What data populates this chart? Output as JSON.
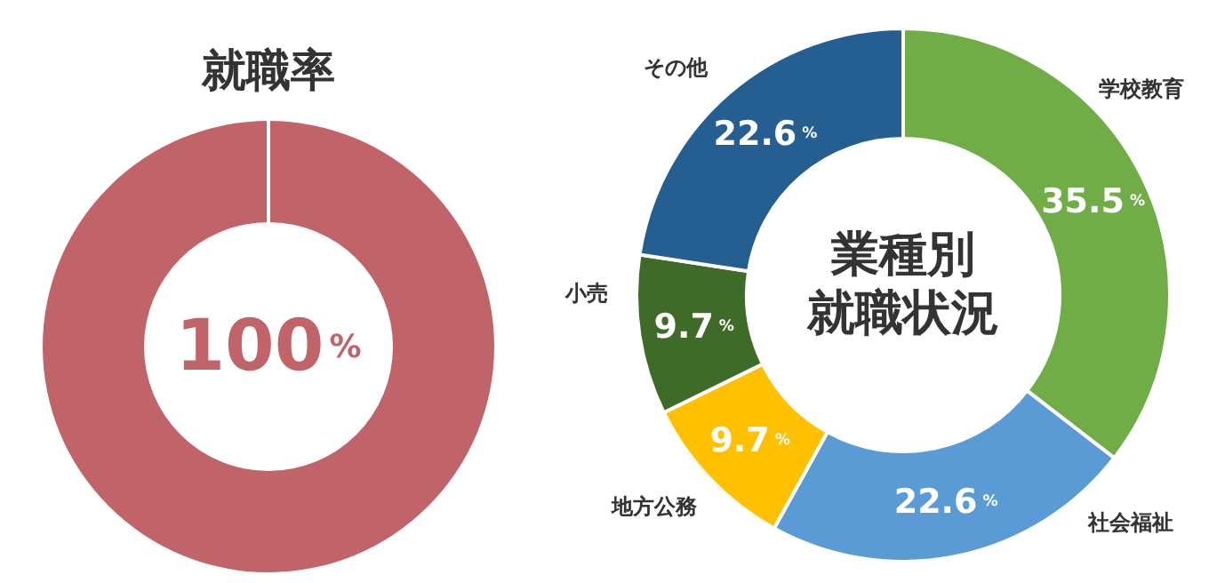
{
  "chart_data": [
    {
      "type": "donut",
      "title": "就職率",
      "categories": [
        null
      ],
      "values": [
        100
      ],
      "colors": [
        "#c0646a"
      ],
      "value_labels": [
        "100%"
      ]
    },
    {
      "type": "donut",
      "title": "業種別就職状況",
      "categories": [
        "学校教育",
        "社会福祉",
        "地方公務",
        "小売",
        "その他"
      ],
      "values": [
        35.5,
        22.6,
        9.7,
        9.7,
        22.6
      ],
      "colors": [
        "#70ad47",
        "#5b9bd5",
        "#ffc000",
        "#3f6b29",
        "#255e91"
      ],
      "value_labels": [
        "35.5%",
        "22.6%",
        "9.7%",
        "9.7%",
        "22.6%"
      ]
    }
  ]
}
